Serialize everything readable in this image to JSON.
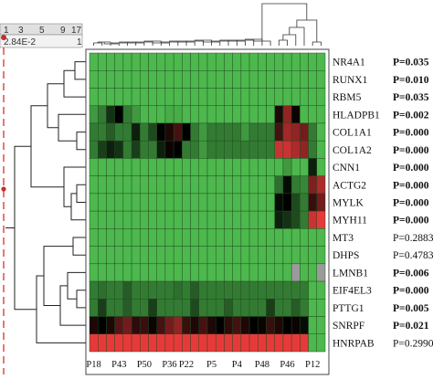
{
  "scale_bar": {
    "ticks": [
      "1",
      "3",
      "5",
      "9",
      "17"
    ],
    "min_label": "2.84E-2",
    "max_label": "1"
  },
  "chart_data": {
    "type": "heatmap",
    "title": "",
    "xlabel": "",
    "ylabel": "",
    "colors": {
      "low": "#4db84d",
      "mid": "#000000",
      "high": "#e8393a",
      "missing": "#9a9a9a",
      "border": "#1d4a1d"
    },
    "x_tick_labels": [
      "P18",
      "P43",
      "P50",
      "P36",
      "P22",
      "P5",
      "P4",
      "P48",
      "P46",
      "P12"
    ],
    "rows": [
      {
        "gene": "NR4A1",
        "p": "P=0.035",
        "significant": true
      },
      {
        "gene": "RUNX1",
        "p": "P=0.010",
        "significant": true
      },
      {
        "gene": "RBM5",
        "p": "P=0.035",
        "significant": true
      },
      {
        "gene": "HLADPB1",
        "p": "P=0.002",
        "significant": true
      },
      {
        "gene": "COL1A1",
        "p": "P=0.000",
        "significant": true
      },
      {
        "gene": "COL1A2",
        "p": "P=0.000",
        "significant": true
      },
      {
        "gene": "CNN1",
        "p": "P=0.000",
        "significant": true
      },
      {
        "gene": "ACTG2",
        "p": "P=0.000",
        "significant": true
      },
      {
        "gene": "MYLK",
        "p": "P=0.000",
        "significant": true
      },
      {
        "gene": "MYH11",
        "p": "P=0.000",
        "significant": true
      },
      {
        "gene": "MT3",
        "p": "P=0.2883",
        "significant": false
      },
      {
        "gene": "DHPS",
        "p": "P=0.4783",
        "significant": false
      },
      {
        "gene": "LMNB1",
        "p": "P=0.006",
        "significant": true
      },
      {
        "gene": "EIF4EL3",
        "p": "P=0.000",
        "significant": true
      },
      {
        "gene": "PTTG1",
        "p": "P=0.005",
        "significant": true
      },
      {
        "gene": "SNRPF",
        "p": "P=0.021",
        "significant": true
      },
      {
        "gene": "HNRPAB",
        "p": "P=0.2990",
        "significant": false
      }
    ],
    "num_columns": 28,
    "values": [
      [
        0.2,
        0.2,
        0.2,
        0.2,
        0.2,
        0.2,
        0.2,
        0.2,
        0.2,
        0.2,
        0.2,
        0.2,
        0.2,
        0.2,
        0.2,
        0.2,
        0.2,
        0.2,
        0.2,
        0.2,
        0.2,
        0.2,
        0.2,
        0.2,
        0.2,
        0.2,
        0.2,
        0.2
      ],
      [
        0.2,
        0.2,
        0.2,
        0.2,
        0.2,
        0.2,
        0.2,
        0.2,
        0.2,
        0.2,
        0.2,
        0.2,
        0.2,
        0.2,
        0.2,
        0.2,
        0.2,
        0.2,
        0.2,
        0.2,
        0.2,
        0.2,
        0.2,
        0.2,
        0.2,
        0.2,
        0.2,
        0.2
      ],
      [
        0.2,
        0.2,
        0.2,
        0.2,
        0.2,
        0.2,
        0.2,
        0.2,
        0.2,
        0.2,
        0.2,
        0.2,
        0.2,
        0.2,
        0.2,
        0.2,
        0.2,
        0.2,
        0.2,
        0.2,
        0.2,
        0.2,
        0.2,
        0.2,
        0.2,
        0.2,
        0.2,
        0.2
      ],
      [
        0.25,
        0.3,
        0.42,
        0.5,
        0.3,
        0.25,
        0.2,
        0.2,
        0.2,
        0.22,
        0.22,
        0.2,
        0.2,
        0.2,
        0.2,
        0.2,
        0.2,
        0.2,
        0.2,
        0.2,
        0.2,
        0.2,
        0.55,
        0.75,
        0.52,
        0.2,
        0.2,
        0.2
      ],
      [
        0.3,
        0.3,
        0.35,
        0.3,
        0.3,
        0.45,
        0.3,
        0.38,
        0.5,
        0.55,
        0.62,
        0.5,
        0.3,
        0.25,
        0.3,
        0.3,
        0.3,
        0.3,
        0.25,
        0.3,
        0.3,
        0.3,
        0.62,
        0.78,
        0.75,
        0.7,
        0.3,
        0.2
      ],
      [
        0.3,
        0.4,
        0.45,
        0.42,
        0.3,
        0.4,
        0.3,
        0.3,
        0.45,
        0.52,
        0.5,
        0.3,
        0.3,
        0.25,
        0.3,
        0.3,
        0.3,
        0.3,
        0.3,
        0.3,
        0.3,
        0.3,
        0.85,
        0.85,
        0.8,
        0.75,
        0.3,
        0.2
      ],
      [
        0.2,
        0.2,
        0.2,
        0.2,
        0.2,
        0.2,
        0.2,
        0.2,
        0.2,
        0.2,
        0.2,
        0.2,
        0.2,
        0.2,
        0.2,
        0.2,
        0.2,
        0.2,
        0.2,
        0.2,
        0.2,
        0.2,
        0.2,
        0.25,
        0.2,
        0.2,
        0.45,
        0.2
      ],
      [
        0.2,
        0.2,
        0.2,
        0.2,
        0.2,
        0.2,
        0.2,
        0.2,
        0.2,
        0.2,
        0.2,
        0.2,
        0.2,
        0.2,
        0.2,
        0.2,
        0.2,
        0.2,
        0.2,
        0.2,
        0.2,
        0.2,
        0.32,
        0.48,
        0.3,
        0.28,
        0.72,
        0.8
      ],
      [
        0.2,
        0.2,
        0.2,
        0.2,
        0.2,
        0.2,
        0.2,
        0.2,
        0.2,
        0.2,
        0.2,
        0.2,
        0.2,
        0.2,
        0.2,
        0.2,
        0.2,
        0.2,
        0.2,
        0.2,
        0.2,
        0.2,
        0.48,
        0.5,
        0.38,
        0.3,
        0.6,
        0.7
      ],
      [
        0.2,
        0.2,
        0.2,
        0.2,
        0.2,
        0.2,
        0.2,
        0.2,
        0.2,
        0.2,
        0.2,
        0.2,
        0.2,
        0.2,
        0.2,
        0.2,
        0.2,
        0.2,
        0.2,
        0.2,
        0.2,
        0.2,
        0.45,
        0.42,
        0.38,
        0.3,
        0.85,
        0.9
      ],
      [
        0.2,
        0.2,
        0.2,
        0.2,
        0.2,
        0.2,
        0.2,
        0.2,
        0.2,
        0.2,
        0.2,
        0.2,
        0.2,
        0.2,
        0.2,
        0.2,
        0.2,
        0.2,
        0.2,
        0.2,
        0.2,
        0.2,
        0.2,
        0.2,
        0.2,
        0.2,
        0.2,
        0.2
      ],
      [
        0.2,
        0.2,
        0.2,
        0.2,
        0.2,
        0.2,
        0.2,
        0.2,
        0.2,
        0.2,
        0.2,
        0.2,
        0.2,
        0.2,
        0.2,
        0.2,
        0.2,
        0.2,
        0.2,
        0.2,
        0.2,
        0.2,
        0.2,
        0.2,
        0.2,
        0.2,
        0.2,
        0.2
      ],
      [
        0.2,
        0.2,
        0.2,
        0.2,
        0.2,
        0.2,
        0.2,
        0.2,
        0.2,
        0.2,
        0.2,
        0.2,
        0.2,
        0.2,
        0.2,
        0.2,
        0.2,
        0.2,
        0.2,
        0.2,
        0.2,
        0.2,
        0.2,
        0.2,
        null,
        0.2,
        0.2,
        null
      ],
      [
        0.3,
        0.32,
        0.3,
        0.3,
        0.35,
        0.3,
        0.3,
        0.3,
        0.3,
        0.3,
        0.32,
        0.3,
        0.35,
        0.3,
        0.3,
        0.3,
        0.3,
        0.3,
        0.3,
        0.3,
        0.3,
        0.3,
        0.3,
        0.3,
        0.3,
        0.3,
        0.2,
        0.2
      ],
      [
        0.3,
        0.4,
        0.3,
        0.3,
        0.35,
        0.3,
        0.3,
        0.4,
        0.3,
        0.3,
        0.3,
        0.3,
        0.38,
        0.3,
        0.3,
        0.3,
        0.35,
        0.3,
        0.3,
        0.3,
        0.3,
        0.4,
        0.3,
        0.3,
        0.35,
        0.3,
        0.2,
        0.2
      ],
      [
        0.55,
        0.5,
        0.55,
        0.65,
        0.7,
        0.58,
        0.6,
        0.52,
        0.62,
        0.7,
        0.75,
        0.6,
        0.55,
        0.62,
        0.55,
        0.5,
        0.58,
        0.62,
        0.55,
        0.5,
        0.52,
        0.6,
        0.55,
        0.5,
        0.52,
        0.48,
        0.2,
        0.2
      ],
      [
        0.9,
        0.9,
        0.9,
        0.9,
        0.9,
        0.9,
        0.9,
        0.9,
        0.9,
        0.9,
        0.9,
        0.9,
        0.9,
        0.9,
        0.9,
        0.9,
        0.9,
        0.9,
        0.9,
        0.9,
        0.9,
        0.9,
        0.9,
        0.9,
        0.9,
        0.9,
        0.2,
        0.2
      ]
    ]
  }
}
